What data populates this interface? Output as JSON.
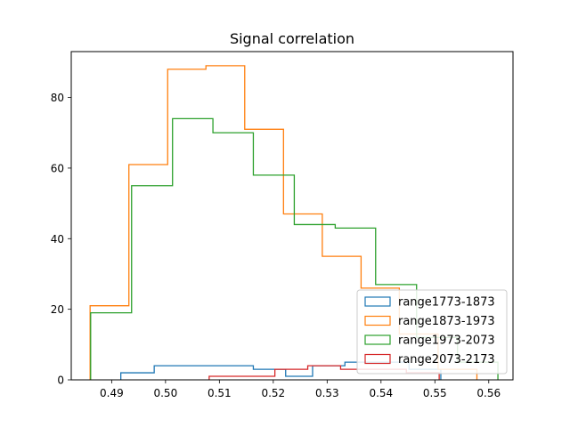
{
  "chart_data": {
    "type": "histogram-step",
    "title": "Signal correlation",
    "xlabel": "",
    "ylabel": "",
    "xlim": [
      0.4825,
      0.5645
    ],
    "ylim": [
      0,
      93
    ],
    "x_ticks": [
      0.49,
      0.5,
      0.51,
      0.52,
      0.53,
      0.54,
      0.55,
      0.56
    ],
    "x_tick_labels": [
      "0.49",
      "0.50",
      "0.51",
      "0.52",
      "0.53",
      "0.54",
      "0.55",
      "0.56"
    ],
    "y_ticks": [
      0,
      20,
      40,
      60,
      80
    ],
    "y_tick_labels": [
      "0",
      "20",
      "40",
      "60",
      "80"
    ],
    "legend_position": "lower-right",
    "series": [
      {
        "name": "range1773-1873",
        "color": "#1f77b4",
        "edges": [
          0.4917,
          0.4979,
          0.5042,
          0.5104,
          0.5163,
          0.5223,
          0.5273,
          0.5333,
          0.5392,
          0.5452,
          0.5511
        ],
        "counts": [
          2,
          4,
          4,
          4,
          3,
          1,
          4,
          5,
          5,
          3
        ]
      },
      {
        "name": "range1873-1973",
        "color": "#ff7f0e",
        "edges": [
          0.486,
          0.4932,
          0.5004,
          0.5075,
          0.5147,
          0.5219,
          0.5291,
          0.5363,
          0.5434,
          0.5506,
          0.5578
        ],
        "counts": [
          21,
          61,
          88,
          89,
          71,
          47,
          35,
          26,
          13,
          3
        ]
      },
      {
        "name": "range1973-2073",
        "color": "#2ca02c",
        "edges": [
          0.4861,
          0.4937,
          0.5013,
          0.5088,
          0.5163,
          0.5239,
          0.5315,
          0.539,
          0.5466,
          0.5542,
          0.5617
        ],
        "counts": [
          19,
          55,
          74,
          70,
          58,
          44,
          43,
          27,
          12,
          5
        ]
      },
      {
        "name": "range2073-2173",
        "color": "#d62728",
        "edges": [
          0.5081,
          0.5142,
          0.5203,
          0.5264,
          0.5325,
          0.5386,
          0.5447,
          0.5508
        ],
        "counts": [
          1,
          1,
          3,
          4,
          3,
          3,
          2
        ]
      }
    ]
  }
}
